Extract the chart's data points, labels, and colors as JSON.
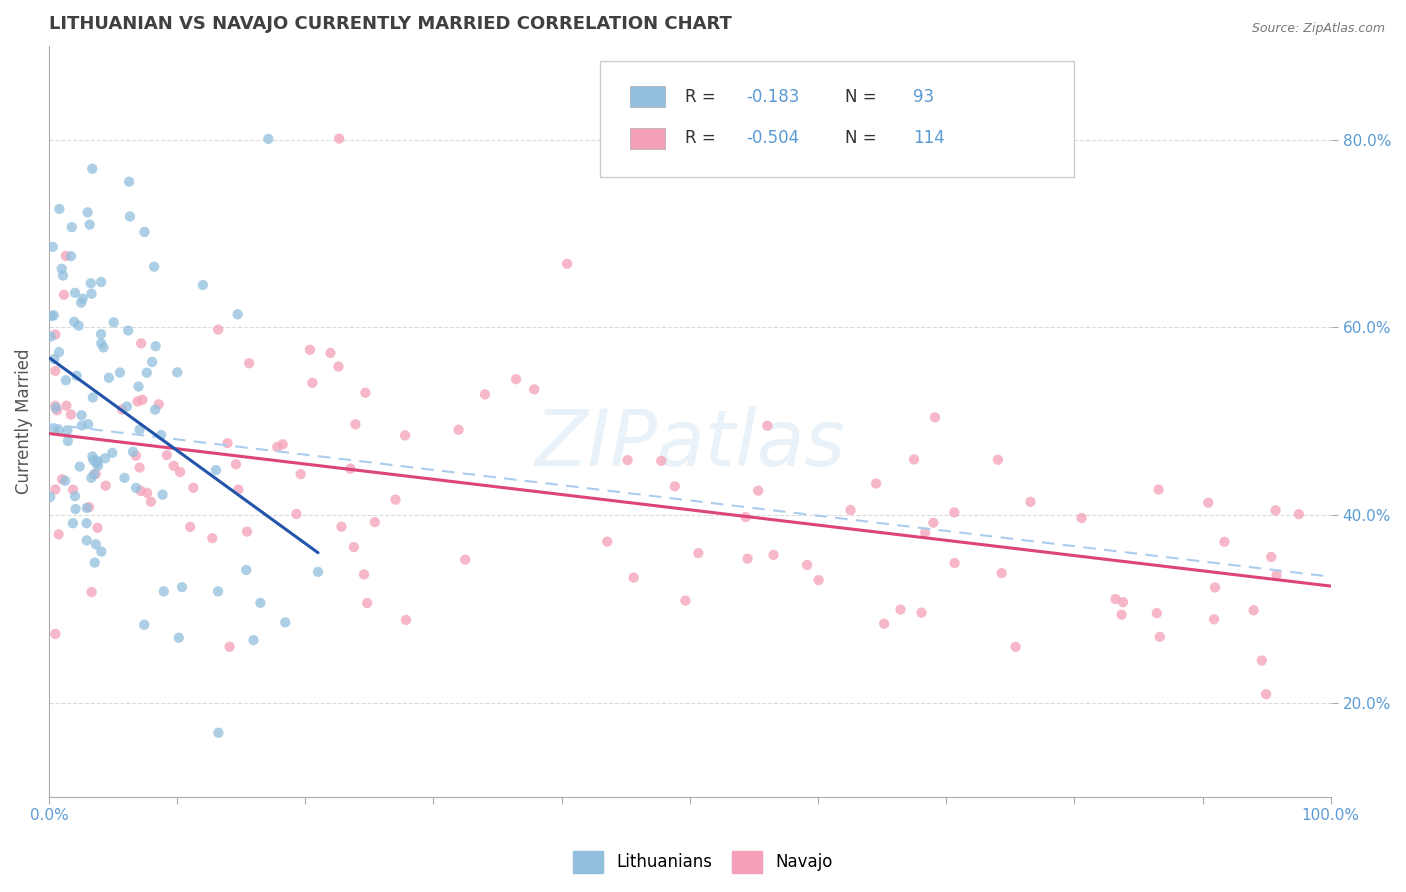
{
  "title": "LITHUANIAN VS NAVAJO CURRENTLY MARRIED CORRELATION CHART",
  "source": "Source: ZipAtlas.com",
  "ylabel": "Currently Married",
  "xlim": [
    0.0,
    1.0
  ],
  "ylim": [
    0.1,
    0.9
  ],
  "legend_R1": "-0.183",
  "legend_N1": "93",
  "legend_R2": "-0.504",
  "legend_N2": "114",
  "blue_color": "#92bfdd",
  "pink_color": "#f4a0b8",
  "blue_line_color": "#2255aa",
  "pink_line_color": "#dd4477",
  "dash_line_color": "#aaccee",
  "title_color": "#404040",
  "axis_color": "#5b9bd5",
  "background_color": "#ffffff",
  "grid_color": "#cccccc",
  "watermark": "ZIPatlas"
}
